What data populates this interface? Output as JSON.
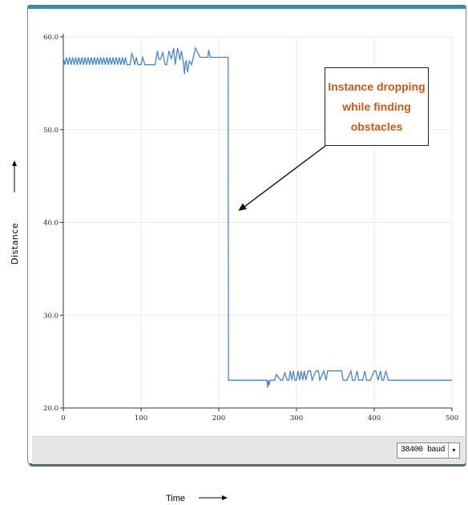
{
  "chart_data": {
    "type": "line",
    "xlabel": "Time",
    "ylabel": "Distance",
    "xlim": [
      0,
      500
    ],
    "ylim": [
      20,
      60
    ],
    "x_ticks": [
      0,
      100,
      200,
      300,
      400,
      500
    ],
    "x_tick_labels": [
      "0",
      "100",
      "200",
      "300",
      "400",
      "500"
    ],
    "y_ticks": [
      20,
      30,
      40,
      50,
      60
    ],
    "y_tick_labels": [
      "20.0",
      "30.0",
      "40.0",
      "50.0",
      "60.0"
    ],
    "grid": true,
    "series": [
      {
        "color": "#4a86c6",
        "x": [
          0,
          2,
          4,
          6,
          8,
          10,
          12,
          14,
          16,
          18,
          20,
          22,
          24,
          26,
          28,
          30,
          32,
          34,
          36,
          38,
          40,
          42,
          44,
          46,
          48,
          50,
          52,
          54,
          56,
          58,
          60,
          62,
          64,
          66,
          68,
          70,
          72,
          74,
          76,
          78,
          80,
          82,
          84,
          86,
          88,
          90,
          92,
          94,
          96,
          100,
          102,
          105,
          108,
          112,
          115,
          118,
          121,
          123,
          125,
          128,
          131,
          133,
          136,
          139,
          142,
          144,
          147,
          150,
          152,
          154,
          156,
          157,
          158,
          160,
          162,
          165,
          170,
          176,
          180,
          185,
          186,
          187,
          189,
          190,
          210,
          212,
          212.5,
          220,
          262,
          263,
          264,
          265,
          266,
          268,
          270,
          272,
          274,
          280,
          282,
          285,
          288,
          290,
          292,
          294,
          296,
          298,
          300,
          302,
          304,
          306,
          308,
          310,
          312,
          315,
          318,
          320,
          325,
          328,
          330,
          335,
          338,
          340,
          345,
          350,
          355,
          358,
          360,
          362,
          365,
          370,
          372,
          375,
          378,
          380,
          385,
          388,
          390,
          395,
          400,
          402,
          405,
          408,
          410,
          412,
          415,
          418,
          420,
          500
        ],
        "values": [
          57.8,
          57.0,
          57.8,
          57.0,
          57.8,
          57.0,
          57.8,
          57.0,
          57.8,
          57.0,
          57.8,
          57.0,
          57.8,
          57.0,
          57.8,
          57.0,
          57.8,
          57.0,
          57.8,
          57.0,
          57.8,
          57.0,
          57.8,
          57.0,
          57.8,
          57.0,
          57.8,
          57.0,
          57.8,
          57.0,
          57.8,
          57.0,
          57.8,
          57.0,
          57.8,
          57.0,
          57.8,
          57.0,
          57.8,
          57.0,
          57.8,
          57.0,
          57.0,
          57.0,
          58.2,
          57.8,
          57.0,
          57.8,
          57.0,
          57.0,
          57.8,
          57.0,
          57.0,
          57.0,
          57.0,
          57.0,
          58.5,
          57.6,
          57.6,
          58.3,
          57.0,
          57.0,
          58.5,
          57.6,
          58.8,
          57.0,
          58.8,
          57.5,
          58.5,
          57.5,
          56.0,
          57.2,
          57.4,
          56.2,
          57.4,
          57.0,
          58.8,
          57.8,
          57.8,
          57.8,
          57.8,
          58.6,
          57.8,
          57.8,
          57.8,
          57.8,
          23.0,
          23.0,
          23.0,
          22.2,
          23.0,
          22.5,
          23.0,
          23.0,
          23.0,
          23.0,
          23.6,
          23.0,
          23.0,
          23.8,
          23.0,
          23.0,
          24.0,
          23.0,
          24.0,
          23.0,
          23.0,
          24.0,
          23.0,
          24.0,
          23.0,
          24.0,
          23.0,
          24.0,
          24.0,
          23.0,
          24.0,
          24.0,
          23.0,
          24.0,
          23.0,
          24.0,
          24.0,
          24.0,
          24.0,
          24.0,
          23.0,
          23.0,
          23.0,
          24.0,
          23.0,
          23.0,
          24.0,
          23.0,
          23.0,
          24.0,
          23.0,
          23.0,
          24.0,
          24.0,
          23.0,
          24.0,
          23.0,
          23.0,
          24.0,
          23.0,
          23.0,
          23.0
        ]
      }
    ],
    "annotation": {
      "text_lines": [
        "Instance dropping",
        "while finding",
        "obstacles"
      ],
      "arrow_target": [
        222,
        41.5
      ],
      "color": "#c55a11"
    }
  },
  "status_bar": {
    "baud_label": "38400 baud",
    "arrow": "▼"
  }
}
